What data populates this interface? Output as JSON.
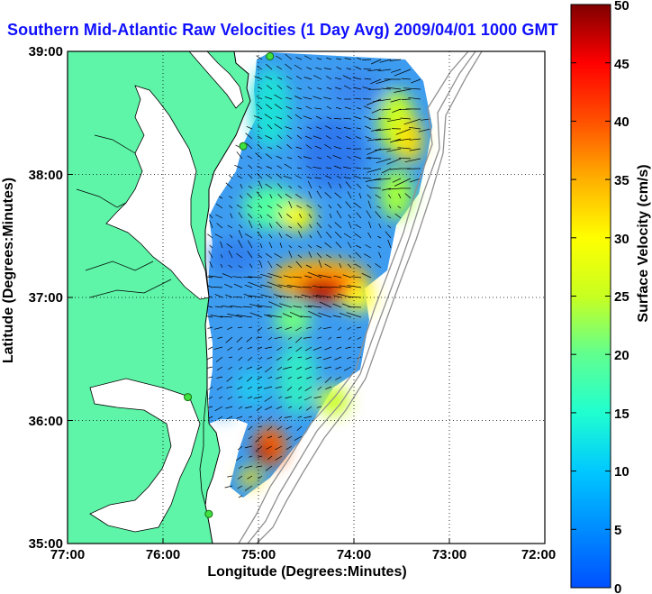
{
  "title": "Southern Mid-Atlantic Raw Velocities (1 Day Avg) 2009/04/01 1000 GMT",
  "axes": {
    "xlabel": "Longitude (Degrees:Minutes)",
    "ylabel": "Latitude (Degrees:Minutes)",
    "x_ticks": [
      "77:00",
      "76:00",
      "75:00",
      "74:00",
      "73:00",
      "72:00"
    ],
    "y_ticks": [
      "39:00",
      "38:00",
      "37:00",
      "36:00",
      "35:00"
    ],
    "xlim": [
      -77,
      -72
    ],
    "ylim": [
      35,
      39
    ],
    "grid": true
  },
  "colorbar": {
    "label": "Surface Velocity (cm/s)",
    "ticks": [
      "0",
      "5",
      "10",
      "15",
      "20",
      "25",
      "30",
      "35",
      "40",
      "45",
      "50"
    ],
    "range": [
      0,
      50
    ],
    "colormap": "jet"
  },
  "colors": {
    "land": "#5ef5a8",
    "title": "#1010ff",
    "grid": "#000000"
  },
  "stations": [
    {
      "lon": -74.88,
      "lat": 38.96
    },
    {
      "lon": -75.16,
      "lat": 38.23
    },
    {
      "lon": -75.74,
      "lat": 36.19
    },
    {
      "lon": -75.52,
      "lat": 35.24
    }
  ]
}
